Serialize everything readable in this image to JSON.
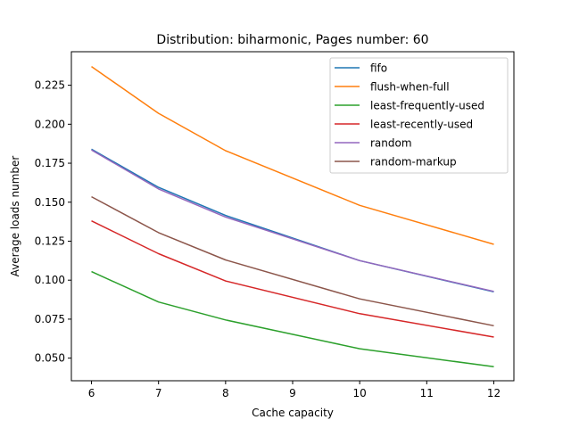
{
  "chart_data": {
    "type": "line",
    "title": "Distribution: biharmonic, Pages number: 60",
    "xlabel": "Cache capacity",
    "ylabel": "Average loads number",
    "x": [
      6,
      7,
      8,
      10,
      12
    ],
    "xlim": [
      5.7,
      12.3
    ],
    "ylim": [
      0.0355,
      0.2465
    ],
    "xticks": [
      "6",
      "7",
      "8",
      "9",
      "10",
      "11",
      "12"
    ],
    "yticks": [
      "0.050",
      "0.075",
      "0.100",
      "0.125",
      "0.150",
      "0.175",
      "0.200",
      "0.225"
    ],
    "grid": false,
    "legend_position": "top-right",
    "series": [
      {
        "name": "fifo",
        "color": "#1f77b4",
        "values": [
          0.184,
          0.1595,
          0.1415,
          0.1125,
          0.0925
        ]
      },
      {
        "name": "flush-when-full",
        "color": "#ff7f0e",
        "values": [
          0.237,
          0.207,
          0.183,
          0.148,
          0.123
        ]
      },
      {
        "name": "least-frequently-used",
        "color": "#2ca02c",
        "values": [
          0.1055,
          0.086,
          0.0745,
          0.056,
          0.0445
        ]
      },
      {
        "name": "least-recently-used",
        "color": "#d62728",
        "values": [
          0.138,
          0.117,
          0.0995,
          0.0785,
          0.0635
        ]
      },
      {
        "name": "random",
        "color": "#9467bd",
        "values": [
          0.1835,
          0.1585,
          0.1405,
          0.1125,
          0.0928
        ]
      },
      {
        "name": "random-markup",
        "color": "#8c564b",
        "values": [
          0.1535,
          0.1305,
          0.113,
          0.088,
          0.0708
        ]
      }
    ]
  }
}
